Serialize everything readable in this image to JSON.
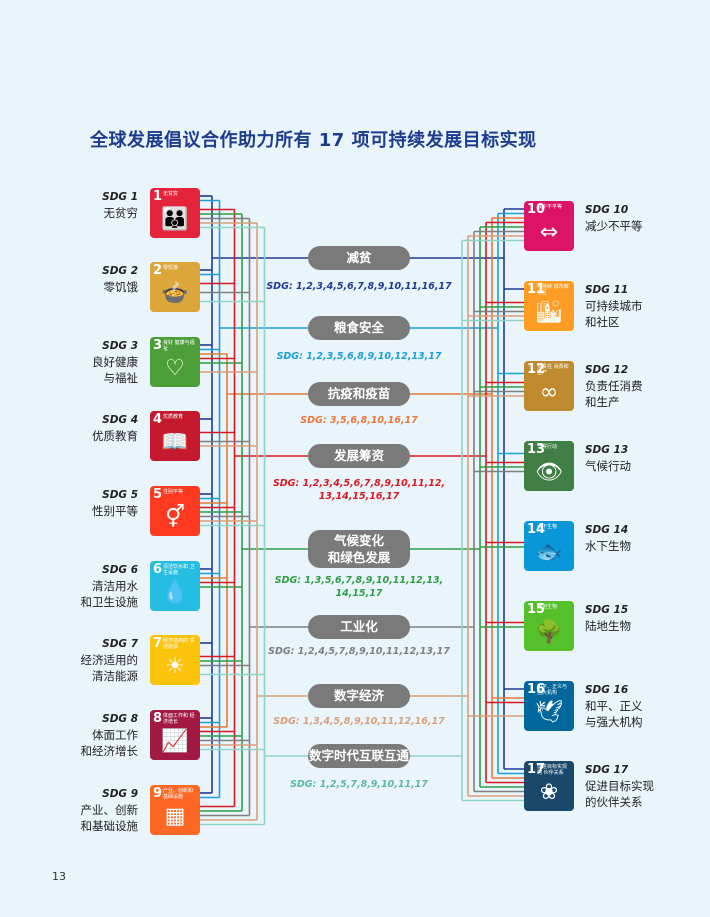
{
  "title": "全球发展倡议合作助力所有 17 项可持续发展目标实现",
  "page_number": "13",
  "left_goals": [
    {
      "label_num": "SDG 1",
      "label_name": "无贫穷",
      "tile_num": "1",
      "tile_name": "无贫穷",
      "color": "#e5243b",
      "icon": "👪"
    },
    {
      "label_num": "SDG 2",
      "label_name": "零饥饿",
      "tile_num": "2",
      "tile_name": "零饥饿",
      "color": "#dda63a",
      "icon": "🍲"
    },
    {
      "label_num": "SDG 3",
      "label_name": "良好健康\n与福祉",
      "tile_num": "3",
      "tile_name": "良好 健康与福祉",
      "color": "#4c9f38",
      "icon": "♡"
    },
    {
      "label_num": "SDG 4",
      "label_name": "优质教育",
      "tile_num": "4",
      "tile_name": "优质教育",
      "color": "#c5192d",
      "icon": "📖"
    },
    {
      "label_num": "SDG 5",
      "label_name": "性别平等",
      "tile_num": "5",
      "tile_name": "性别平等",
      "color": "#ff3a21",
      "icon": "⚥"
    },
    {
      "label_num": "SDG 6",
      "label_name": "清洁用水\n和卫生设施",
      "tile_num": "6",
      "tile_name": "清洁饮水和 卫生设施",
      "color": "#26bde2",
      "icon": "💧"
    },
    {
      "label_num": "SDG 7",
      "label_name": "经济适用的\n清洁能源",
      "tile_num": "7",
      "tile_name": "经济适用的 清洁能源",
      "color": "#fcc30b",
      "icon": "☀"
    },
    {
      "label_num": "SDG 8",
      "label_name": "体面工作\n和经济增长",
      "tile_num": "8",
      "tile_name": "体面工作和 经济增长",
      "color": "#a21942",
      "icon": "📈"
    },
    {
      "label_num": "SDG 9",
      "label_name": "产业、创新\n和基础设施",
      "tile_num": "9",
      "tile_name": "产业、创新和 基础设施",
      "color": "#fd6925",
      "icon": "▦"
    }
  ],
  "right_goals": [
    {
      "label_num": "SDG 10",
      "label_name": "减少不平等",
      "tile_num": "10",
      "tile_name": "减少不平等",
      "color": "#dd1367",
      "icon": "⇔"
    },
    {
      "label_num": "SDG 11",
      "label_name": "可持续城市\n和社区",
      "tile_num": "11",
      "tile_name": "可持续 城市和社区",
      "color": "#fd9d24",
      "icon": "🏙"
    },
    {
      "label_num": "SDG 12",
      "label_name": "负责任消费\n和生产",
      "tile_num": "12",
      "tile_name": "负责任 消费和生产",
      "color": "#bf8b2e",
      "icon": "∞"
    },
    {
      "label_num": "SDG 13",
      "label_name": "气候行动",
      "tile_num": "13",
      "tile_name": "气候行动",
      "color": "#3f7e44",
      "icon": "👁"
    },
    {
      "label_num": "SDG 14",
      "label_name": "水下生物",
      "tile_num": "14",
      "tile_name": "水下生物",
      "color": "#0a97d9",
      "icon": "🐟"
    },
    {
      "label_num": "SDG 15",
      "label_name": "陆地生物",
      "tile_num": "15",
      "tile_name": "陆地生物",
      "color": "#56c02b",
      "icon": "🌳"
    },
    {
      "label_num": "SDG 16",
      "label_name": "和平、正义\n与强大机构",
      "tile_num": "16",
      "tile_name": "和平、正义与 强大机构",
      "color": "#00689d",
      "icon": "🕊"
    },
    {
      "label_num": "SDG 17",
      "label_name": "促进目标实现\n的伙伴关系",
      "tile_num": "17",
      "tile_name": "促进目标实现的 伙伴关系",
      "color": "#19486a",
      "icon": "❀"
    }
  ],
  "areas": [
    {
      "name": "减贫",
      "sdgs": "SDG: 1,2,3,4,5,6,7,8,9,10,11,16,17",
      "color": "#1f3a93",
      "list_color": "#1f3a93"
    },
    {
      "name": "粮食安全",
      "sdgs": "SDG: 1,2,3,5,6,8,9,10,12,13,17",
      "color": "#1aa0d8",
      "list_color": "#1aa0d8"
    },
    {
      "name": "抗疫和疫苗",
      "sdgs": "SDG: 3,5,6,8,10,16,17",
      "color": "#e8783a",
      "list_color": "#e8783a"
    },
    {
      "name": "发展筹资",
      "sdgs": "SDG: 1,2,3,4,5,6,7,8,9,10,11,12,\n13,14,15,16,17",
      "color": "#d71920",
      "list_color": "#d71920"
    },
    {
      "name": "气候变化\n和绿色发展",
      "sdgs": "SDG: 1,3,5,6,7,8,9,10,11,12,13,\n14,15,17",
      "color": "#2e9e44",
      "list_color": "#2e9e44"
    },
    {
      "name": "工业化",
      "sdgs": "SDG: 1,2,4,5,7,8,9,10,11,12,13,17",
      "color": "#7f7f7f",
      "list_color": "#7f7f7f"
    },
    {
      "name": "数字经济",
      "sdgs": "SDG: 1,3,4,5,8,9,10,11,12,16,17",
      "color": "#d8a07a",
      "list_color": "#d8a07a"
    },
    {
      "name": "数字时代互联互通",
      "sdgs": "SDG: 1,2,5,7,8,9,10,11,17",
      "color": "#8fd3c8",
      "list_color": "#5fb6a8"
    }
  ]
}
